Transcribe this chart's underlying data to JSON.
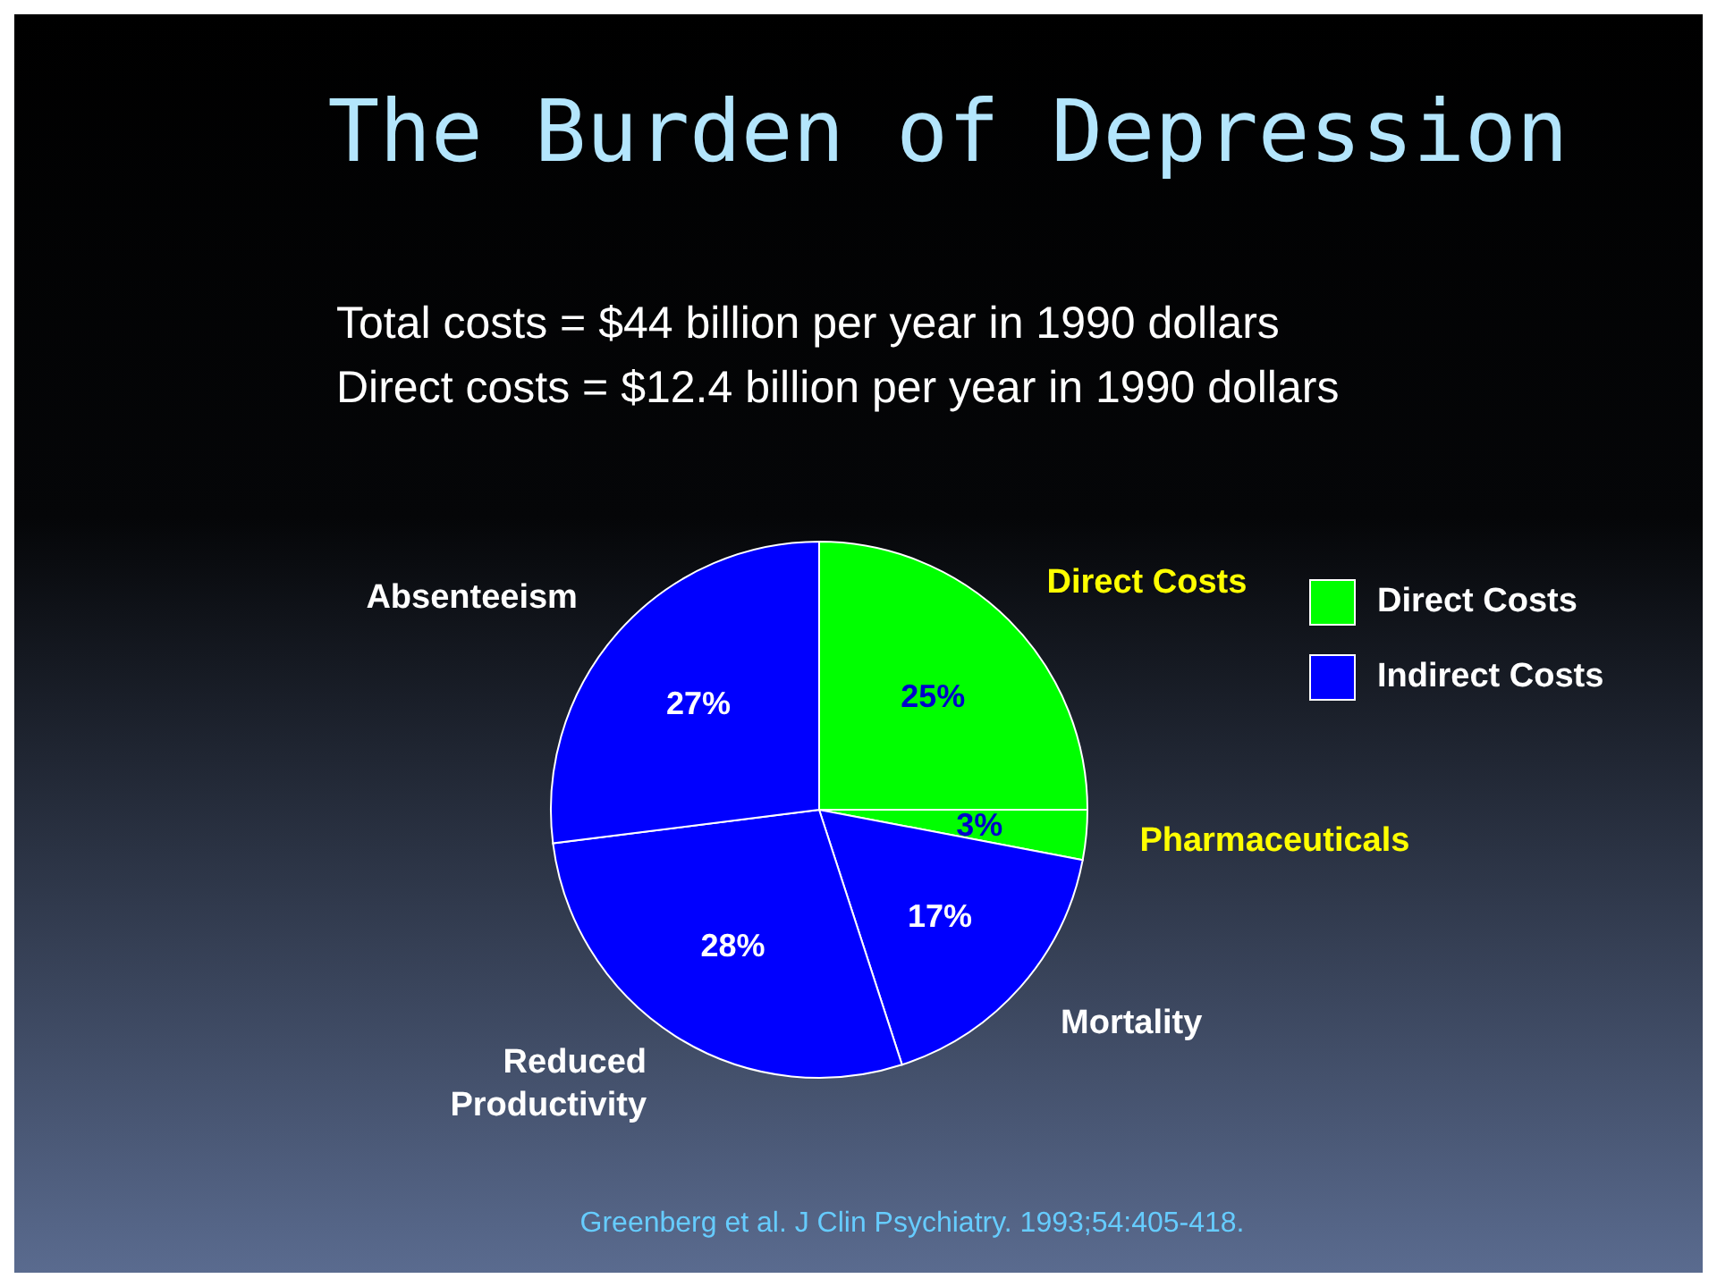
{
  "chart_data": {
    "type": "pie",
    "title": "The Burden of Depression",
    "subtitle": "Total costs = $44 billion per year in 1990 dollars\nDirect costs = $12.4 billion per year in 1990 dollars",
    "categories": [
      "Direct Costs",
      "Pharmaceuticals",
      "Mortality",
      "Reduced Productivity",
      "Absenteeism"
    ],
    "values": [
      25,
      3,
      17,
      28,
      27
    ],
    "colors": [
      "#00ff00",
      "#00ff00",
      "#0000ff",
      "#0000ff",
      "#0000ff"
    ],
    "value_labels": [
      "25%",
      "3%",
      "17%",
      "28%",
      "27%"
    ],
    "annotations": [
      "Direct Costs",
      "Indirect Costs",
      "Greenberg et al. J Clin Psychiatry. 1993;54:405-418."
    ]
  }
}
